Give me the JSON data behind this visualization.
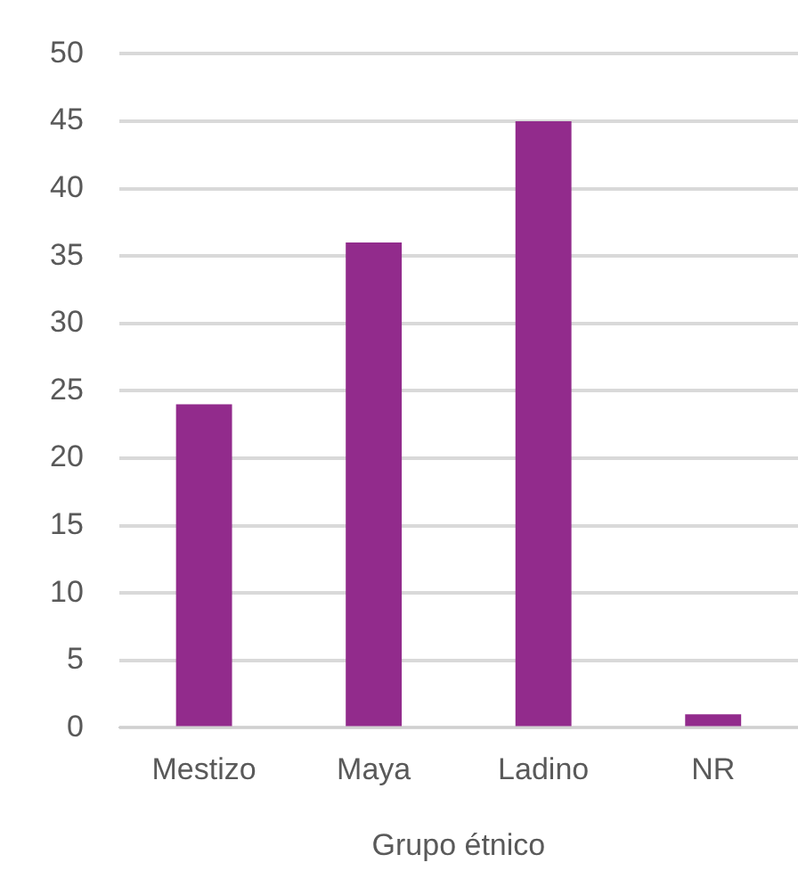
{
  "chart_data": {
    "type": "bar",
    "xlabel": "Grupo étnico",
    "categories": [
      "Mestizo",
      "Maya",
      "Ladino",
      "NR"
    ],
    "values": [
      24,
      36,
      45,
      1
    ],
    "color": "#922b8c",
    "ylim": [
      0,
      50
    ],
    "yticks": [
      0,
      5,
      10,
      15,
      20,
      25,
      30,
      35,
      40,
      45,
      50
    ],
    "grid": "y"
  }
}
